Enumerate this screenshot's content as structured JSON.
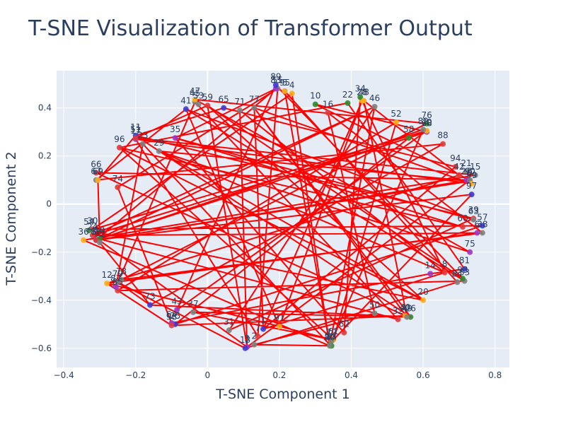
{
  "chart_data": {
    "type": "scatter",
    "title": "T-SNE Visualization of Transformer Output",
    "xlabel": "T-SNE Component 1",
    "ylabel": "T-SNE Component 2",
    "xlim": [
      -0.42,
      0.84
    ],
    "ylim": [
      -0.68,
      0.555
    ],
    "xticks": [
      -0.4,
      -0.2,
      0,
      0.2,
      0.4,
      0.6,
      0.8
    ],
    "xtick_labels": [
      "−0.4",
      "−0.2",
      "0",
      "0.2",
      "0.4",
      "0.6",
      "0.8"
    ],
    "yticks": [
      -0.6,
      -0.4,
      -0.2,
      0,
      0.2,
      0.4
    ],
    "ytick_labels": [
      "−0.6",
      "−0.4",
      "−0.2",
      "0",
      "0.2",
      "0.4"
    ],
    "grid": true,
    "legend": "none",
    "line_color": "#ff0000",
    "plot_bg": "#e5ecf6",
    "point_colors": [
      "#3b3bd6",
      "#e03b3b",
      "#2e8b2e",
      "#ffae1a",
      "#9b37c8",
      "#7f7f7f"
    ],
    "points": [
      {
        "label": "1",
        "x": 0.155,
        "y": -0.52,
        "c": 0
      },
      {
        "label": "2",
        "x": 0.13,
        "y": -0.585,
        "c": 5
      },
      {
        "label": "3",
        "x": 0.11,
        "y": -0.595,
        "c": 4
      },
      {
        "label": "4",
        "x": 0.235,
        "y": 0.46,
        "c": 3
      },
      {
        "label": "5",
        "x": 0.215,
        "y": 0.47,
        "c": 5
      },
      {
        "label": "6",
        "x": 0.75,
        "y": -0.12,
        "c": 4
      },
      {
        "label": "7",
        "x": 0.14,
        "y": -0.55,
        "c": 1
      },
      {
        "label": "8",
        "x": 0.66,
        "y": -0.285,
        "c": 1
      },
      {
        "label": "9",
        "x": 0.73,
        "y": 0.095,
        "c": 0
      },
      {
        "label": "10",
        "x": 0.3,
        "y": 0.415,
        "c": 2
      },
      {
        "label": "11",
        "x": -0.2,
        "y": 0.285,
        "c": 0
      },
      {
        "label": "12",
        "x": -0.28,
        "y": -0.33,
        "c": 3
      },
      {
        "label": "13",
        "x": 0.105,
        "y": -0.6,
        "c": 0
      },
      {
        "label": "14",
        "x": 0.62,
        "y": -0.29,
        "c": 4
      },
      {
        "label": "15",
        "x": 0.745,
        "y": 0.12,
        "c": 5
      },
      {
        "label": "16",
        "x": 0.335,
        "y": 0.38,
        "c": 1
      },
      {
        "label": "17",
        "x": -0.2,
        "y": 0.27,
        "c": 4
      },
      {
        "label": "18",
        "x": -0.31,
        "y": -0.15,
        "c": 0
      },
      {
        "label": "19",
        "x": -0.3,
        "y": -0.145,
        "c": 2
      },
      {
        "label": "20",
        "x": 0.6,
        "y": -0.4,
        "c": 3
      },
      {
        "label": "21",
        "x": 0.72,
        "y": 0.135,
        "c": 5
      },
      {
        "label": "22",
        "x": 0.39,
        "y": 0.42,
        "c": 2
      },
      {
        "label": "23",
        "x": -0.18,
        "y": 0.25,
        "c": 5
      },
      {
        "label": "24",
        "x": -0.32,
        "y": -0.13,
        "c": 1
      },
      {
        "label": "25",
        "x": -0.09,
        "y": -0.5,
        "c": 0
      },
      {
        "label": "26",
        "x": 0.565,
        "y": -0.47,
        "c": 2
      },
      {
        "label": "27",
        "x": 0.72,
        "y": 0.1,
        "c": 4
      },
      {
        "label": "28",
        "x": 0.43,
        "y": 0.43,
        "c": 3
      },
      {
        "label": "29",
        "x": -0.135,
        "y": 0.22,
        "c": 5
      },
      {
        "label": "30",
        "x": -0.32,
        "y": -0.105,
        "c": 1
      },
      {
        "label": "31",
        "x": 0.06,
        "y": -0.525,
        "c": 5
      },
      {
        "label": "32",
        "x": 0.53,
        "y": -0.48,
        "c": 1
      },
      {
        "label": "33",
        "x": 0.715,
        "y": -0.32,
        "c": 5
      },
      {
        "label": "34",
        "x": 0.425,
        "y": 0.445,
        "c": 2
      },
      {
        "label": "35",
        "x": -0.09,
        "y": 0.275,
        "c": 4
      },
      {
        "label": "36",
        "x": -0.345,
        "y": -0.15,
        "c": 3
      },
      {
        "label": "37",
        "x": -0.04,
        "y": -0.45,
        "c": 5
      },
      {
        "label": "38",
        "x": 0.765,
        "y": -0.12,
        "c": 5
      },
      {
        "label": "39",
        "x": 0.74,
        "y": -0.06,
        "c": 1
      },
      {
        "label": "40",
        "x": 0.55,
        "y": -0.465,
        "c": 3
      },
      {
        "label": "41",
        "x": -0.06,
        "y": 0.395,
        "c": 0
      },
      {
        "label": "42",
        "x": 0.7,
        "y": 0.12,
        "c": 1
      },
      {
        "label": "43",
        "x": -0.085,
        "y": -0.44,
        "c": 4
      },
      {
        "label": "44",
        "x": 0.345,
        "y": -0.59,
        "c": 2
      },
      {
        "label": "45",
        "x": -0.035,
        "y": 0.425,
        "c": 5
      },
      {
        "label": "46",
        "x": 0.465,
        "y": 0.405,
        "c": 5
      },
      {
        "label": "47",
        "x": -0.035,
        "y": 0.435,
        "c": 3
      },
      {
        "label": "48",
        "x": 0.435,
        "y": 0.43,
        "c": 3
      },
      {
        "label": "49",
        "x": 0.555,
        "y": -0.47,
        "c": 5
      },
      {
        "label": "50",
        "x": 0.465,
        "y": -0.455,
        "c": 5
      },
      {
        "label": "51",
        "x": -0.2,
        "y": 0.275,
        "c": 1
      },
      {
        "label": "52",
        "x": 0.525,
        "y": 0.34,
        "c": 3
      },
      {
        "label": "53",
        "x": -0.025,
        "y": 0.415,
        "c": 5
      },
      {
        "label": "54",
        "x": -0.33,
        "y": -0.11,
        "c": 2
      },
      {
        "label": "55",
        "x": 0.195,
        "y": 0.48,
        "c": 5
      },
      {
        "label": "56",
        "x": 0.34,
        "y": -0.585,
        "c": 2
      },
      {
        "label": "57",
        "x": 0.765,
        "y": -0.09,
        "c": 0
      },
      {
        "label": "58",
        "x": 0.56,
        "y": 0.275,
        "c": 2
      },
      {
        "label": "59",
        "x": 0.0,
        "y": 0.41,
        "c": 1
      },
      {
        "label": "60",
        "x": 0.71,
        "y": -0.095,
        "c": 1
      },
      {
        "label": "61",
        "x": 0.35,
        "y": -0.565,
        "c": 3
      },
      {
        "label": "62",
        "x": 0.38,
        "y": -0.535,
        "c": 1
      },
      {
        "label": "63",
        "x": 0.74,
        "y": -0.065,
        "c": 5
      },
      {
        "label": "64",
        "x": -0.1,
        "y": -0.495,
        "c": 4
      },
      {
        "label": "65",
        "x": 0.045,
        "y": 0.4,
        "c": 0
      },
      {
        "label": "66",
        "x": -0.31,
        "y": 0.13,
        "c": 1
      },
      {
        "label": "67",
        "x": -0.31,
        "y": 0.1,
        "c": 5
      },
      {
        "label": "68",
        "x": 0.61,
        "y": 0.3,
        "c": 4
      },
      {
        "label": "69",
        "x": -0.305,
        "y": 0.1,
        "c": 3
      },
      {
        "label": "70",
        "x": 0.61,
        "y": 0.305,
        "c": 3
      },
      {
        "label": "71",
        "x": 0.09,
        "y": 0.39,
        "c": 5
      },
      {
        "label": "72",
        "x": 0.345,
        "y": -0.57,
        "c": 5
      },
      {
        "label": "73",
        "x": -0.16,
        "y": -0.42,
        "c": 0
      },
      {
        "label": "74",
        "x": -0.25,
        "y": 0.07,
        "c": 1
      },
      {
        "label": "75",
        "x": 0.73,
        "y": -0.2,
        "c": 4
      },
      {
        "label": "76",
        "x": 0.61,
        "y": 0.335,
        "c": 2
      },
      {
        "label": "77",
        "x": 0.13,
        "y": 0.4,
        "c": 5
      },
      {
        "label": "78",
        "x": -0.24,
        "y": -0.315,
        "c": 5
      },
      {
        "label": "79",
        "x": -0.25,
        "y": -0.325,
        "c": 5
      },
      {
        "label": "80",
        "x": 0.34,
        "y": -0.59,
        "c": 5
      },
      {
        "label": "81",
        "x": 0.715,
        "y": -0.27,
        "c": 0
      },
      {
        "label": "82",
        "x": 0.6,
        "y": 0.31,
        "c": 5
      },
      {
        "label": "83",
        "x": 0.19,
        "y": 0.48,
        "c": 4
      },
      {
        "label": "84",
        "x": 0.695,
        "y": -0.325,
        "c": 5
      },
      {
        "label": "85",
        "x": -0.25,
        "y": -0.36,
        "c": 1
      },
      {
        "label": "86",
        "x": -0.31,
        "y": -0.15,
        "c": 1
      },
      {
        "label": "87",
        "x": -0.255,
        "y": -0.345,
        "c": 4
      },
      {
        "label": "88",
        "x": 0.655,
        "y": 0.25,
        "c": 1
      },
      {
        "label": "89",
        "x": 0.19,
        "y": 0.495,
        "c": 0
      },
      {
        "label": "90",
        "x": 0.73,
        "y": 0.1,
        "c": 5
      },
      {
        "label": "91",
        "x": 0.2,
        "y": -0.51,
        "c": 3
      },
      {
        "label": "92",
        "x": -0.3,
        "y": -0.16,
        "c": 5
      },
      {
        "label": "93",
        "x": 0.71,
        "y": -0.31,
        "c": 2
      },
      {
        "label": "94",
        "x": 0.69,
        "y": 0.155,
        "c": 1
      },
      {
        "label": "95",
        "x": 0.215,
        "y": 0.47,
        "c": 3
      },
      {
        "label": "96",
        "x": -0.245,
        "y": 0.235,
        "c": 1
      },
      {
        "label": "97",
        "x": 0.735,
        "y": 0.04,
        "c": 0
      },
      {
        "label": "98",
        "x": -0.1,
        "y": -0.505,
        "c": 1
      },
      {
        "label": "99",
        "x": 0.735,
        "y": 0.085,
        "c": 3
      }
    ],
    "path_order": [
      "1",
      "77",
      "26",
      "11",
      "39",
      "31",
      "46",
      "18",
      "97",
      "61",
      "96",
      "20",
      "54",
      "70",
      "43",
      "89",
      "93",
      "59",
      "51",
      "15",
      "36",
      "80",
      "4",
      "30",
      "57",
      "25",
      "58",
      "24",
      "3",
      "71",
      "8",
      "34",
      "62",
      "35",
      "63",
      "41",
      "67",
      "88",
      "73",
      "79",
      "13",
      "84",
      "5",
      "56",
      "23",
      "87",
      "45",
      "32",
      "19",
      "68",
      "10",
      "90",
      "66",
      "40",
      "98",
      "12",
      "42",
      "48",
      "49",
      "77",
      "99",
      "17",
      "7",
      "55",
      "74",
      "64",
      "14",
      "81",
      "22",
      "96",
      "60",
      "35",
      "83",
      "86",
      "9",
      "29",
      "75",
      "47",
      "76",
      "78",
      "38",
      "16",
      "50",
      "2",
      "44",
      "52",
      "85",
      "33",
      "41",
      "91",
      "28",
      "1",
      "94",
      "65",
      "11",
      "69",
      "92",
      "73",
      "26",
      "37",
      "61",
      "12",
      "6",
      "24",
      "46",
      "80",
      "82",
      "18",
      "90",
      "3",
      "59",
      "20",
      "29",
      "8",
      "1"
    ]
  }
}
